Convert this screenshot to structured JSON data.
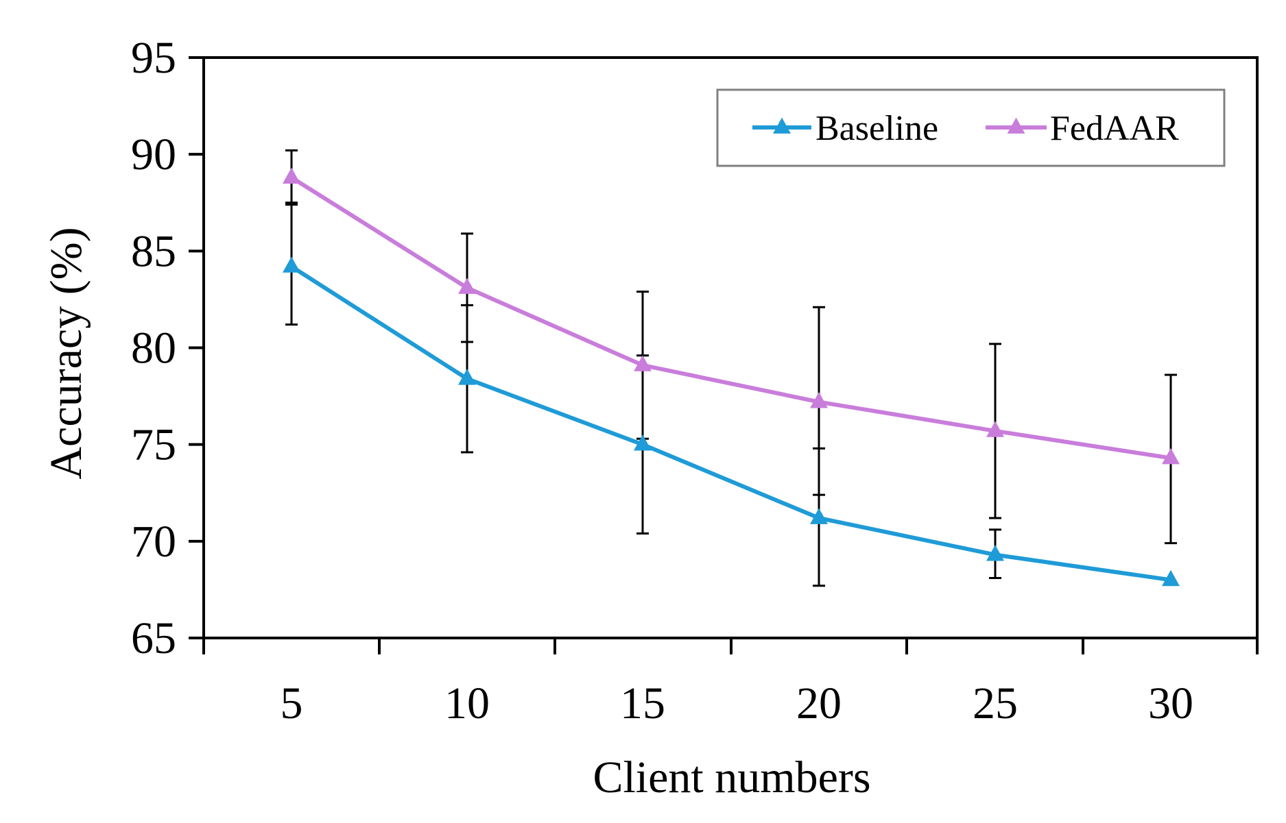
{
  "chart_data": {
    "type": "line",
    "title": "",
    "xlabel": "Client numbers",
    "ylabel": "Accuracy (%)",
    "x": [
      5,
      10,
      15,
      20,
      25,
      30
    ],
    "x_tick_labels": [
      "5",
      "10",
      "15",
      "20",
      "25",
      "30"
    ],
    "ylim": [
      65,
      95
    ],
    "y_ticks": [
      65,
      70,
      75,
      80,
      85,
      90,
      95
    ],
    "y_tick_labels": [
      "65",
      "70",
      "75",
      "80",
      "85",
      "90",
      "95"
    ],
    "grid": false,
    "legend_position": "top-right",
    "series": [
      {
        "name": "Baseline",
        "color": "#1f9bd7",
        "marker": "triangle",
        "values": [
          84.2,
          78.4,
          75.0,
          71.2,
          69.3,
          68.0
        ],
        "error_low": [
          81.2,
          74.6,
          70.4,
          67.7,
          68.1,
          68.0
        ],
        "error_high": [
          87.4,
          82.2,
          79.6,
          74.8,
          70.6,
          68.0
        ]
      },
      {
        "name": "FedAAR",
        "color": "#c97ddb",
        "marker": "triangle",
        "values": [
          88.8,
          83.1,
          79.1,
          77.2,
          75.7,
          74.3
        ],
        "error_low": [
          87.5,
          80.3,
          75.3,
          72.4,
          71.2,
          69.9
        ],
        "error_high": [
          90.2,
          85.9,
          82.9,
          82.1,
          80.2,
          78.6
        ]
      }
    ]
  }
}
